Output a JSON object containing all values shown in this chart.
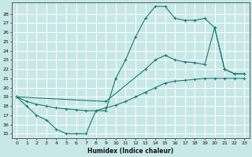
{
  "xlabel": "Humidex (Indice chaleur)",
  "xlim": [
    -0.5,
    23.5
  ],
  "ylim": [
    14.5,
    29.2
  ],
  "yticks": [
    15,
    16,
    17,
    18,
    19,
    20,
    21,
    22,
    23,
    24,
    25,
    26,
    27,
    28
  ],
  "xticks": [
    0,
    1,
    2,
    3,
    4,
    5,
    6,
    7,
    8,
    9,
    10,
    11,
    12,
    13,
    14,
    15,
    16,
    17,
    18,
    19,
    20,
    21,
    22,
    23
  ],
  "bg_color": "#c8e8e8",
  "grid_color": "#ffffff",
  "line_color": "#1a7a6e",
  "line1_x": [
    0,
    1,
    2,
    3,
    4,
    5,
    6,
    7,
    8,
    9,
    10,
    11,
    12,
    13,
    14,
    15,
    16,
    17,
    18,
    19,
    20,
    21,
    22,
    23
  ],
  "line1_y": [
    19,
    18,
    17,
    16.5,
    15.5,
    15,
    15,
    15,
    17.5,
    17.5,
    21,
    23,
    25.5,
    27.5,
    28.8,
    28.8,
    27.5,
    27.3,
    27.3,
    27.5,
    26.5,
    22,
    21.5,
    21.5
  ],
  "line2_x": [
    0,
    1,
    2,
    3,
    4,
    5,
    6,
    7,
    8,
    9,
    10,
    11,
    12,
    13,
    14,
    15,
    16,
    17,
    18,
    19,
    20,
    21,
    22,
    23
  ],
  "line2_y": [
    19,
    18.5,
    18.2,
    18.0,
    17.8,
    17.7,
    17.6,
    17.5,
    17.5,
    17.8,
    18.1,
    18.5,
    19.0,
    19.5,
    20.0,
    20.5,
    20.7,
    20.8,
    20.9,
    21.0,
    21.0,
    21.0,
    21.0,
    21.0
  ],
  "line3_x": [
    0,
    9,
    13,
    14,
    15,
    16,
    17,
    18,
    19,
    20,
    21,
    22,
    23
  ],
  "line3_y": [
    19,
    18.5,
    22,
    23,
    23.5,
    23.0,
    22.8,
    22.7,
    22.5,
    26.5,
    22,
    21.5,
    21.5
  ],
  "figsize": [
    3.2,
    2.0
  ],
  "dpi": 100
}
